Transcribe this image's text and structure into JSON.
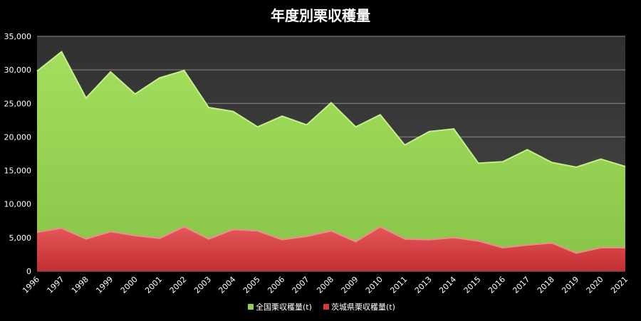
{
  "chart_data": {
    "type": "area",
    "title": "年度別栗収穫量",
    "xlabel": "",
    "ylabel": "",
    "ylim": [
      0,
      35000
    ],
    "yticks": [
      0,
      5000,
      10000,
      15000,
      20000,
      25000,
      30000,
      35000
    ],
    "ytick_labels": [
      "0",
      "5,000",
      "10,000",
      "15,000",
      "20,000",
      "25,000",
      "30,000",
      "35,000"
    ],
    "categories": [
      "1996",
      "1997",
      "1998",
      "1999",
      "2000",
      "2001",
      "2002",
      "2003",
      "2004",
      "2005",
      "2006",
      "2007",
      "2008",
      "2009",
      "2010",
      "2011",
      "2013",
      "2014",
      "2015",
      "2016",
      "2017",
      "2018",
      "2019",
      "2020",
      "2021"
    ],
    "series": [
      {
        "name": "全国栗収穫量(t)",
        "color": "#92d050",
        "values": [
          29800,
          32700,
          25800,
          29700,
          26400,
          28800,
          29900,
          24400,
          23800,
          21500,
          23100,
          21800,
          25100,
          21500,
          23300,
          18800,
          20800,
          21200,
          16100,
          16300,
          18100,
          16200,
          15500,
          16700,
          15600
        ]
      },
      {
        "name": "茨城県栗収穫量(t)",
        "color": "#d9393c",
        "values": [
          5800,
          6400,
          4800,
          5900,
          5300,
          4900,
          6600,
          4800,
          6200,
          6000,
          4700,
          5200,
          6000,
          4400,
          6600,
          4800,
          4700,
          5000,
          4500,
          3500,
          3900,
          4200,
          2700,
          3500,
          3500
        ]
      }
    ],
    "grid": true,
    "legend": "bottom",
    "plot_background": "#3a3a3a",
    "background": "#000000"
  }
}
